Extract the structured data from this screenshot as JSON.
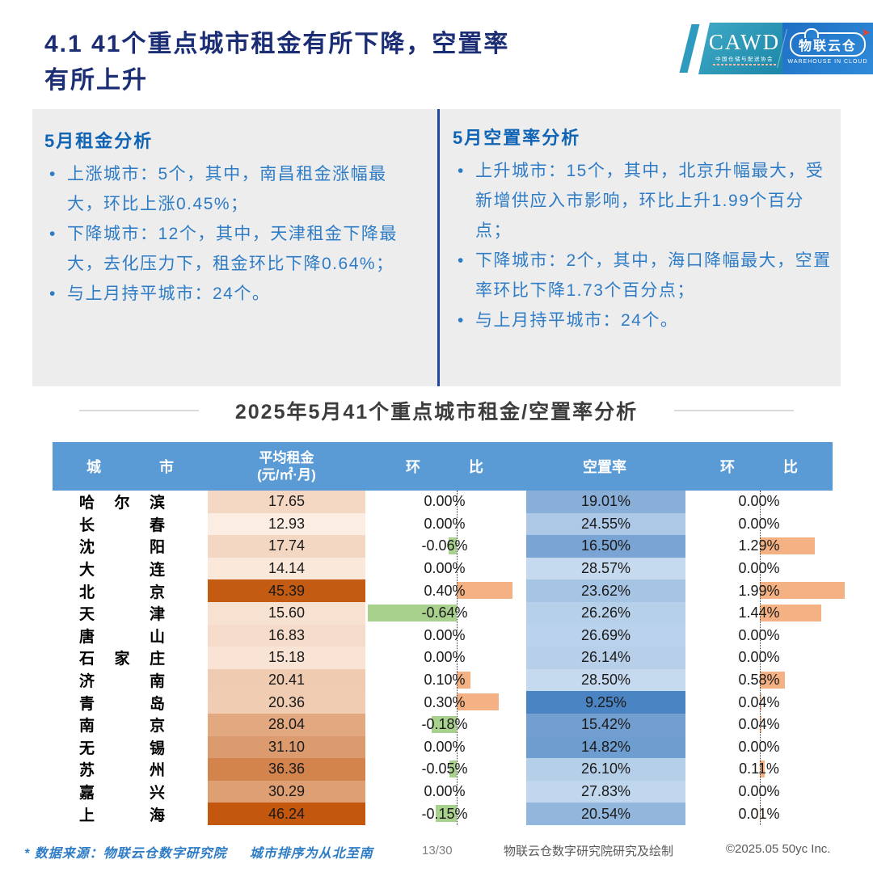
{
  "title": {
    "line1": "4.1 41个重点城市租金有所下降，空置率",
    "line2": "有所上升"
  },
  "logo": {
    "cawd": "CAWD",
    "cawd_sub": "中国仓储与配送协会",
    "cloud_name": "物联云仓",
    "cloud_arrow": "➤",
    "cloud_sub": "WAREHOUSE IN CLOUD"
  },
  "panels": {
    "rent": {
      "heading": "5月租金分析",
      "bullets": [
        "上涨城市：5个，其中，南昌租金涨幅最大，环比上涨0.45%；",
        "下降城市：12个，其中，天津租金下降最大，去化压力下，租金环比下降0.64%；",
        "与上月持平城市：24个。"
      ]
    },
    "vacancy": {
      "heading": "5月空置率分析",
      "bullets": [
        "上升城市：15个，其中，北京升幅最大，受新增供应入市影响，环比上升1.99个百分点；",
        "下降城市：2个，其中，海口降幅最大，空置率环比下降1.73个百分点；",
        "与上月持平城市：24个。"
      ]
    }
  },
  "chart_data": {
    "type": "table",
    "title": "2025年5月41个重点城市租金/空置率分析",
    "columns": {
      "city": "城市",
      "rent_line1": "平均租金",
      "rent_line2": "(元/㎡·月)",
      "mom1": "环比",
      "vacancy": "空置率",
      "mom2": "环比"
    },
    "rows": [
      {
        "city": "哈尔滨",
        "rent": 17.65,
        "rent_mom": 0.0,
        "vacancy": 19.01,
        "vac_mom": 0.0
      },
      {
        "city": "长春",
        "rent": 12.93,
        "rent_mom": 0.0,
        "vacancy": 24.55,
        "vac_mom": 0.0
      },
      {
        "city": "沈阳",
        "rent": 17.74,
        "rent_mom": -0.06,
        "vacancy": 16.5,
        "vac_mom": 1.29
      },
      {
        "city": "大连",
        "rent": 14.14,
        "rent_mom": 0.0,
        "vacancy": 28.57,
        "vac_mom": 0.0
      },
      {
        "city": "北京",
        "rent": 45.39,
        "rent_mom": 0.4,
        "vacancy": 23.62,
        "vac_mom": 1.99
      },
      {
        "city": "天津",
        "rent": 15.6,
        "rent_mom": -0.64,
        "vacancy": 26.26,
        "vac_mom": 1.44
      },
      {
        "city": "唐山",
        "rent": 16.83,
        "rent_mom": 0.0,
        "vacancy": 26.69,
        "vac_mom": 0.0
      },
      {
        "city": "石家庄",
        "rent": 15.18,
        "rent_mom": 0.0,
        "vacancy": 26.14,
        "vac_mom": 0.0
      },
      {
        "city": "济南",
        "rent": 20.41,
        "rent_mom": 0.1,
        "vacancy": 28.5,
        "vac_mom": 0.58
      },
      {
        "city": "青岛",
        "rent": 20.36,
        "rent_mom": 0.3,
        "vacancy": 9.25,
        "vac_mom": 0.04
      },
      {
        "city": "南京",
        "rent": 28.04,
        "rent_mom": -0.18,
        "vacancy": 15.42,
        "vac_mom": 0.04
      },
      {
        "city": "无锡",
        "rent": 31.1,
        "rent_mom": 0.0,
        "vacancy": 14.82,
        "vac_mom": 0.0
      },
      {
        "city": "苏州",
        "rent": 36.36,
        "rent_mom": -0.05,
        "vacancy": 26.1,
        "vac_mom": 0.11
      },
      {
        "city": "嘉兴",
        "rent": 30.29,
        "rent_mom": 0.0,
        "vacancy": 27.83,
        "vac_mom": 0.0
      },
      {
        "city": "上海",
        "rent": 46.24,
        "rent_mom": -0.15,
        "vacancy": 20.54,
        "vac_mom": 0.01
      }
    ],
    "scales": {
      "rent_min": 12.93,
      "rent_max": 46.24,
      "vacancy_min": 9.25,
      "vacancy_max": 28.57,
      "rent_mom_abs_max": 0.64,
      "vac_mom_max": 1.99
    }
  },
  "colors": {
    "title_navy": "#1B2D74",
    "panel_bg": "#EDEDEE",
    "panel_divider": "#2145A0",
    "heading_blue": "#0E63B5",
    "bullet_blue": "#2E7CC5",
    "table_header_bg": "#5B9BD5",
    "bar_positive": "#F4B183",
    "bar_negative": "#A9D18E",
    "rent_scale_low": "#FCEDE2",
    "rent_scale_high": "#C2570D",
    "vacancy_scale_dark": "#4B84C2",
    "vacancy_scale_light": "#C6DAEF",
    "logo_teal": "#2E9BBE",
    "logo_blue": "#1E6FC4"
  },
  "footer": {
    "note_source": "* 数据来源：物联云仓数字研究院",
    "note_order": "城市排序为从北至南",
    "page": "13/30",
    "credit": "物联云仓数字研究院研究及绘制",
    "copyright": "©2025.05 50yc Inc."
  }
}
